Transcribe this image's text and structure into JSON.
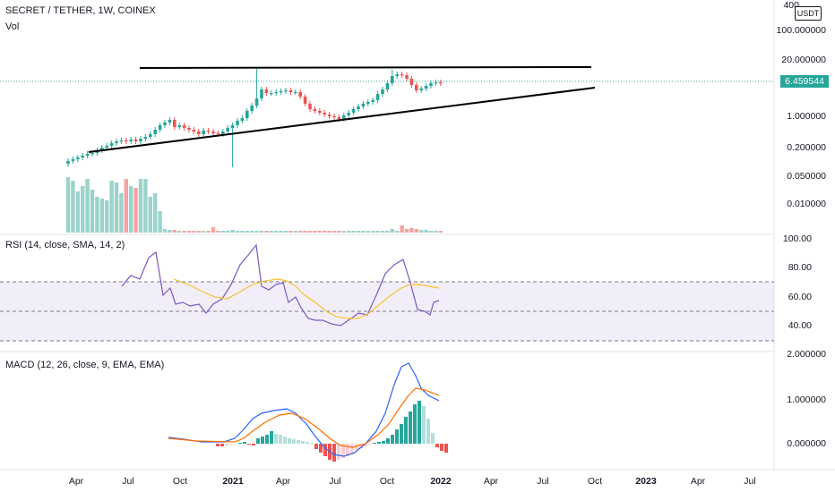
{
  "header": {
    "title": "SECRET / TETHER, 1W, COINEX",
    "volume_label": "Vol"
  },
  "price_axis": {
    "currency": "USDT",
    "top_label": "400",
    "ticks": [
      "100.000000",
      "20.000000",
      "1.000000",
      "0.200000",
      "0.050000",
      "0.010000"
    ],
    "last_price": "6.459544"
  },
  "rsi": {
    "legend": "RSI (14, close, SMA, 14, 2)",
    "ticks": [
      "100.00",
      "80.00",
      "60.00",
      "40.00"
    ]
  },
  "macd": {
    "legend": "MACD (12, 26, close, 9, EMA, EMA)",
    "ticks": [
      "2.000000",
      "1.000000",
      "0.000000"
    ]
  },
  "time_axis": {
    "labels": [
      "Apr",
      "Jul",
      "Oct",
      "2021",
      "Apr",
      "Jul",
      "Oct",
      "2022",
      "Apr",
      "Jul",
      "Oct",
      "2023",
      "Apr",
      "Jul"
    ],
    "bold": [
      false,
      false,
      false,
      true,
      false,
      false,
      false,
      true,
      false,
      false,
      false,
      true,
      false,
      false
    ]
  },
  "colors": {
    "up": "#26a69a",
    "down": "#ef5350",
    "rsi_line": "#7e57c2",
    "rsi_ma": "#f6c42c",
    "macd_line": "#2962ff",
    "signal_line": "#ff6d00",
    "trendline": "#000000",
    "price_line": "#26a69a"
  },
  "chart_data": {
    "type": "candlestick",
    "symbol": "SECRET / TETHER",
    "interval": "1W",
    "exchange": "COINEX",
    "price_scale": "log",
    "last_price": 6.459544,
    "price_axis_ticks": [
      100,
      20,
      1,
      0.2,
      0.05,
      0.01
    ]
  }
}
